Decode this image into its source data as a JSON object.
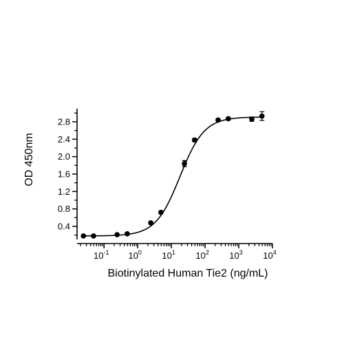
{
  "chart_data": {
    "type": "scatter",
    "title": "",
    "xlabel": "Biotinylated Human Tie2 (ng/mL)",
    "ylabel": "OD 450nm",
    "x_scale": "log10",
    "xlim": [
      0.0158,
      10000
    ],
    "ylim": [
      0.1,
      3.1
    ],
    "grid": false,
    "legend": "none",
    "x_ticks": [
      {
        "base": "10",
        "exp": "-1",
        "value": 0.1
      },
      {
        "base": "10",
        "exp": "0",
        "value": 1
      },
      {
        "base": "10",
        "exp": "1",
        "value": 10
      },
      {
        "base": "10",
        "exp": "2",
        "value": 100
      },
      {
        "base": "10",
        "exp": "3",
        "value": 1000
      },
      {
        "base": "10",
        "exp": "4",
        "value": 10000
      }
    ],
    "y_ticks": [
      {
        "label": "0.4",
        "value": 0.4
      },
      {
        "label": "0.8",
        "value": 0.8
      },
      {
        "label": "1.2",
        "value": 1.2
      },
      {
        "label": "1.6",
        "value": 1.6
      },
      {
        "label": "2.0",
        "value": 2.0
      },
      {
        "label": "2.4",
        "value": 2.4
      },
      {
        "label": "2.8",
        "value": 2.8
      }
    ],
    "series": [
      {
        "color": "#000000",
        "points": [
          {
            "x": 0.0244,
            "y": 0.18,
            "err": 0.02
          },
          {
            "x": 0.0488,
            "y": 0.18,
            "err": 0.02
          },
          {
            "x": 0.244,
            "y": 0.21,
            "err": 0.02
          },
          {
            "x": 0.488,
            "y": 0.23,
            "err": 0.02
          },
          {
            "x": 2.44,
            "y": 0.48,
            "err": 0.03
          },
          {
            "x": 4.88,
            "y": 0.72,
            "err": 0.03
          },
          {
            "x": 24.4,
            "y": 1.84,
            "err": 0.07
          },
          {
            "x": 48.8,
            "y": 2.38,
            "err": 0.04
          },
          {
            "x": 244,
            "y": 2.84,
            "err": 0.03
          },
          {
            "x": 488,
            "y": 2.87,
            "err": 0.03
          },
          {
            "x": 2440,
            "y": 2.86,
            "err": 0.05
          },
          {
            "x": 4880,
            "y": 2.93,
            "err": 0.1
          }
        ]
      }
    ],
    "fit_curve": {
      "type": "4PL",
      "bottom": 0.18,
      "top": 2.91,
      "ec50": 18,
      "hill": 1.2
    }
  }
}
